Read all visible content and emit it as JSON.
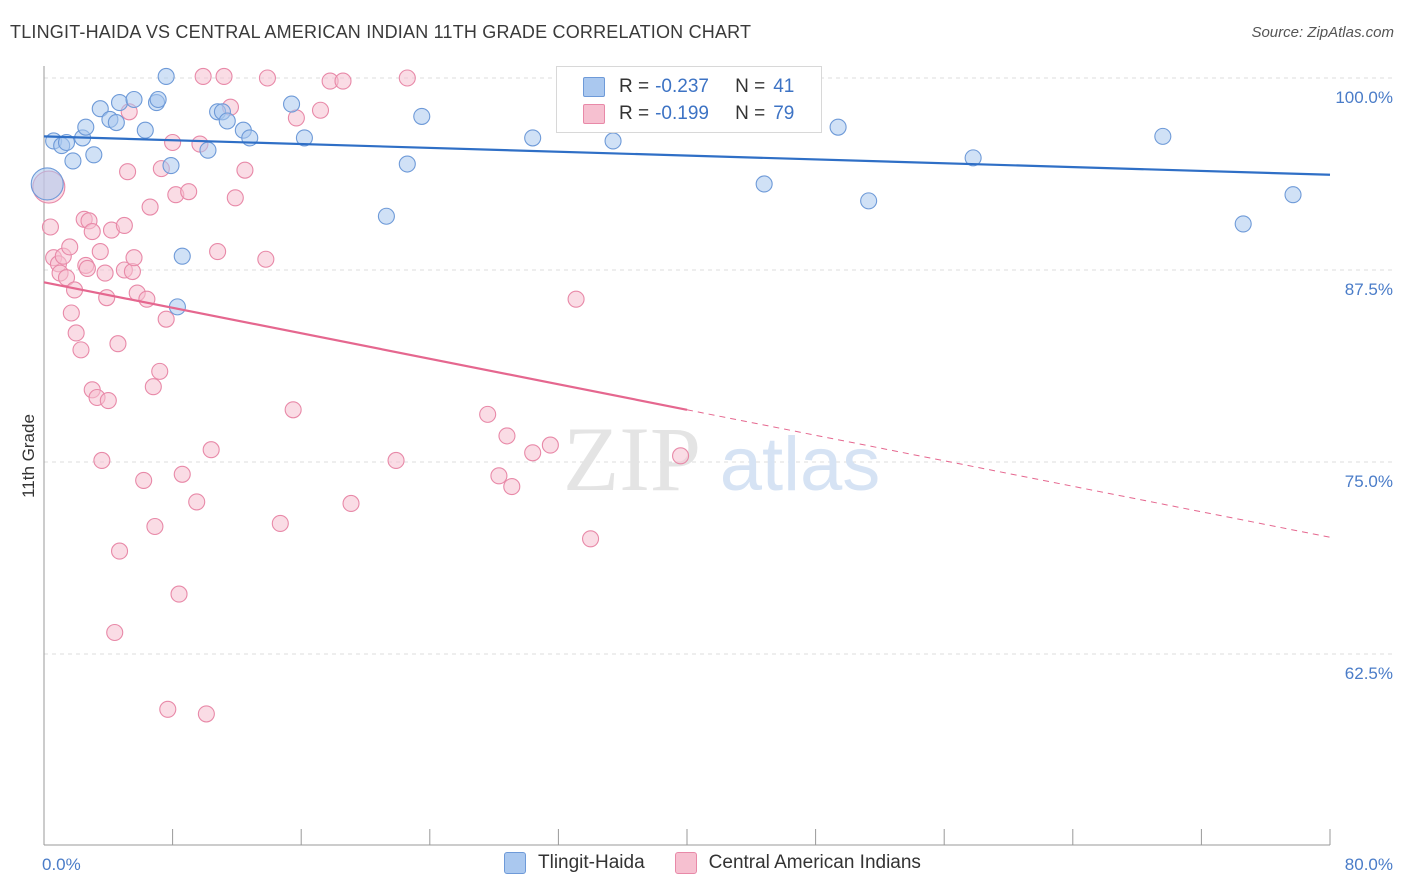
{
  "header": {
    "title": "TLINGIT-HAIDA VS CENTRAL AMERICAN INDIAN 11TH GRADE CORRELATION CHART",
    "source": "Source: ZipAtlas.com"
  },
  "legend_top": {
    "rows": [
      {
        "r_label": "R =",
        "r_value": "-0.237",
        "n_label": "N =",
        "n_value": "41"
      },
      {
        "r_label": "R =",
        "r_value": "-0.199",
        "n_label": "N =",
        "n_value": "79"
      }
    ]
  },
  "watermark": {
    "zip": "ZIP",
    "atlas": "atlas"
  },
  "colors": {
    "blue_fill": "#aac8ef",
    "blue_stroke": "#6e9ad8",
    "blue_line": "#2f6fc6",
    "pink_fill": "#f6c0d0",
    "pink_stroke": "#e889a8",
    "pink_line": "#e5678f",
    "tick_text": "#4a7cc8",
    "grid": "#dddddd"
  },
  "chart_data": {
    "type": "scatter",
    "title": "TLINGIT-HAIDA VS CENTRAL AMERICAN INDIAN 11TH GRADE CORRELATION CHART",
    "xlabel": "",
    "ylabel": "11th Grade",
    "xlim": [
      0,
      80
    ],
    "ylim": [
      50,
      101.5
    ],
    "x_tick_labels": [
      "0.0%",
      "80.0%"
    ],
    "y_ticks": [
      62.5,
      75.0,
      87.5,
      100.0
    ],
    "y_tick_labels": [
      "62.5%",
      "75.0%",
      "87.5%",
      "100.0%"
    ],
    "grid": true,
    "legend_position": "top-center",
    "series": [
      {
        "name": "Tlingit-Haida",
        "color": "#aac8ef",
        "trend": {
          "x": [
            0,
            80
          ],
          "y": [
            96.2,
            93.7
          ],
          "dashed_from": null
        },
        "points": [
          [
            0.2,
            93.1
          ],
          [
            0.6,
            95.9
          ],
          [
            1.1,
            95.6
          ],
          [
            1.4,
            95.8
          ],
          [
            1.8,
            94.6
          ],
          [
            2.4,
            96.1
          ],
          [
            2.6,
            96.8
          ],
          [
            3.1,
            95.0
          ],
          [
            3.5,
            98.0
          ],
          [
            4.1,
            97.3
          ],
          [
            4.5,
            97.1
          ],
          [
            4.7,
            98.4
          ],
          [
            5.6,
            98.6
          ],
          [
            6.3,
            96.6
          ],
          [
            7.0,
            98.4
          ],
          [
            7.1,
            98.6
          ],
          [
            7.6,
            100.1
          ],
          [
            7.9,
            94.3
          ],
          [
            8.6,
            88.4
          ],
          [
            10.2,
            95.3
          ],
          [
            10.8,
            97.8
          ],
          [
            11.1,
            97.8
          ],
          [
            11.4,
            97.2
          ],
          [
            12.4,
            96.6
          ],
          [
            12.8,
            96.1
          ],
          [
            15.4,
            98.3
          ],
          [
            16.2,
            96.1
          ],
          [
            21.3,
            91.0
          ],
          [
            22.6,
            94.4
          ],
          [
            23.5,
            97.5
          ],
          [
            30.4,
            96.1
          ],
          [
            35.4,
            95.9
          ],
          [
            36.1,
            100.0
          ],
          [
            44.8,
            93.1
          ],
          [
            49.4,
            96.8
          ],
          [
            51.3,
            92.0
          ],
          [
            57.8,
            94.8
          ],
          [
            69.6,
            96.2
          ],
          [
            74.6,
            90.5
          ],
          [
            77.7,
            92.4
          ],
          [
            8.3,
            85.1
          ]
        ]
      },
      {
        "name": "Central American Indians",
        "color": "#f6c0d0",
        "trend": {
          "x": [
            0,
            80
          ],
          "y": [
            86.7,
            70.1
          ],
          "dashed_from": 40
        },
        "points": [
          [
            0.3,
            92.9
          ],
          [
            0.4,
            90.3
          ],
          [
            0.6,
            88.3
          ],
          [
            0.9,
            87.9
          ],
          [
            1.0,
            87.3
          ],
          [
            1.2,
            88.4
          ],
          [
            1.4,
            87.0
          ],
          [
            1.6,
            89.0
          ],
          [
            1.7,
            84.7
          ],
          [
            1.9,
            86.2
          ],
          [
            2.0,
            83.4
          ],
          [
            2.3,
            82.3
          ],
          [
            2.5,
            90.8
          ],
          [
            2.6,
            87.8
          ],
          [
            2.8,
            90.7
          ],
          [
            3.0,
            79.7
          ],
          [
            3.0,
            90.0
          ],
          [
            3.3,
            79.2
          ],
          [
            3.5,
            88.7
          ],
          [
            3.6,
            75.1
          ],
          [
            3.8,
            87.3
          ],
          [
            3.9,
            85.7
          ],
          [
            4.0,
            79.0
          ],
          [
            4.2,
            90.1
          ],
          [
            4.6,
            82.7
          ],
          [
            4.7,
            69.2
          ],
          [
            5.0,
            90.4
          ],
          [
            5.0,
            87.5
          ],
          [
            5.2,
            93.9
          ],
          [
            5.3,
            97.8
          ],
          [
            5.5,
            87.4
          ],
          [
            5.6,
            88.3
          ],
          [
            5.8,
            86.0
          ],
          [
            6.2,
            73.8
          ],
          [
            6.4,
            85.6
          ],
          [
            6.6,
            91.6
          ],
          [
            6.8,
            79.9
          ],
          [
            6.9,
            70.8
          ],
          [
            7.2,
            80.9
          ],
          [
            7.3,
            94.1
          ],
          [
            7.6,
            84.3
          ],
          [
            7.7,
            58.9
          ],
          [
            8.0,
            95.8
          ],
          [
            8.2,
            92.4
          ],
          [
            8.4,
            66.4
          ],
          [
            8.6,
            74.2
          ],
          [
            9.0,
            92.6
          ],
          [
            9.5,
            72.4
          ],
          [
            9.7,
            95.7
          ],
          [
            9.9,
            100.1
          ],
          [
            10.1,
            58.6
          ],
          [
            10.4,
            75.8
          ],
          [
            10.8,
            88.7
          ],
          [
            11.2,
            100.1
          ],
          [
            11.6,
            98.1
          ],
          [
            11.9,
            92.2
          ],
          [
            12.5,
            94.0
          ],
          [
            13.8,
            88.2
          ],
          [
            13.9,
            100.0
          ],
          [
            14.7,
            71.0
          ],
          [
            15.5,
            78.4
          ],
          [
            15.7,
            97.4
          ],
          [
            17.2,
            97.9
          ],
          [
            17.8,
            99.8
          ],
          [
            18.6,
            99.8
          ],
          [
            19.1,
            72.3
          ],
          [
            21.9,
            75.1
          ],
          [
            22.6,
            100.0
          ],
          [
            27.6,
            78.1
          ],
          [
            28.3,
            74.1
          ],
          [
            28.8,
            76.7
          ],
          [
            29.1,
            73.4
          ],
          [
            30.4,
            75.6
          ],
          [
            31.5,
            76.1
          ],
          [
            33.1,
            85.6
          ],
          [
            34.0,
            70.0
          ],
          [
            39.6,
            75.4
          ],
          [
            4.4,
            63.9
          ],
          [
            2.7,
            87.6
          ]
        ]
      }
    ]
  },
  "bottom_legend": {
    "items": [
      {
        "label": "Tlingit-Haida",
        "color": "#aac8ef"
      },
      {
        "label": "Central American Indians",
        "color": "#f6c0d0"
      }
    ]
  }
}
